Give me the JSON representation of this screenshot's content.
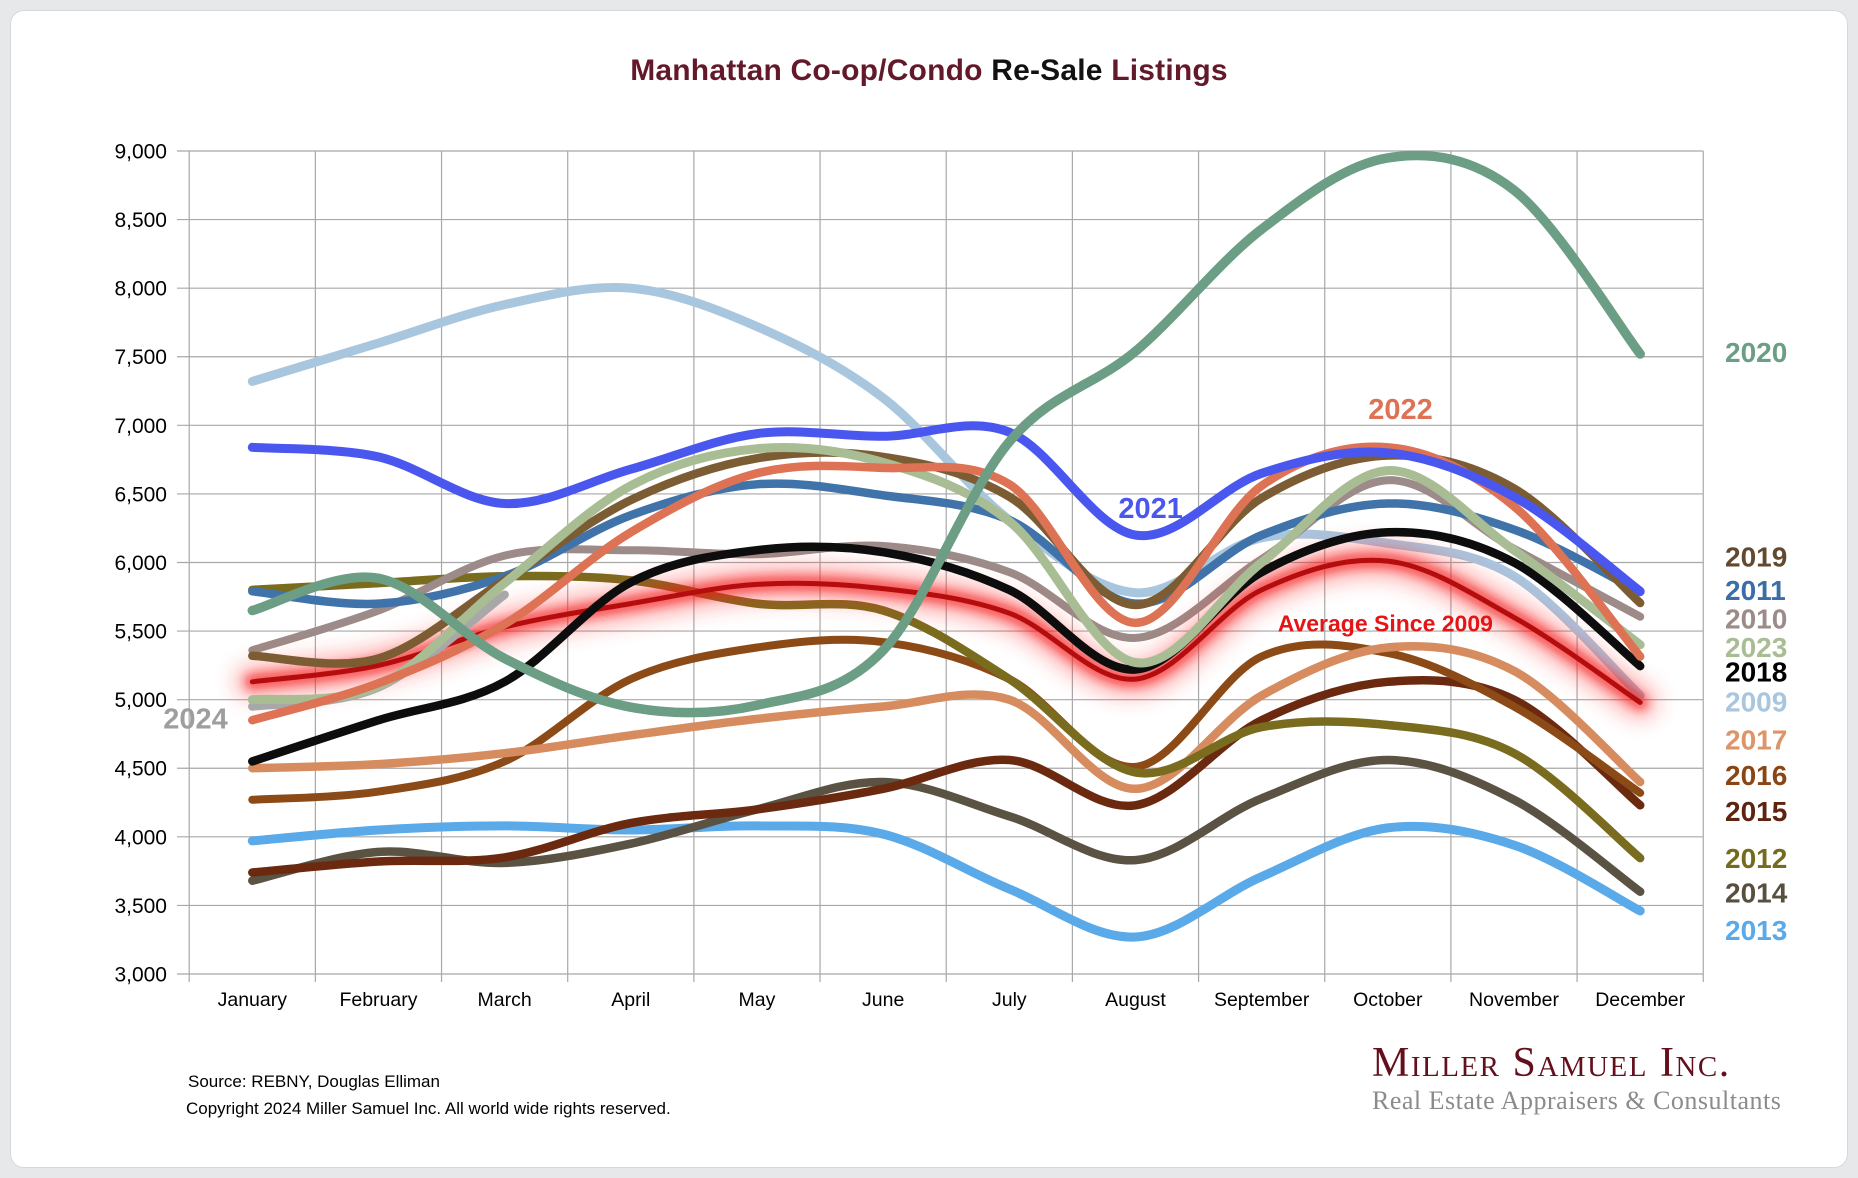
{
  "title": {
    "part1": "Manhattan Co-op/Condo ",
    "part2": "Re-Sale ",
    "part3": "Listings",
    "maroon": "#63192a",
    "black": "#121212"
  },
  "source": {
    "line1": "Source: REBNY, Douglas Elliman",
    "line2": "Copyright 2024 Miller Samuel Inc.  All world wide rights reserved."
  },
  "logo": {
    "name": "Miller Samuel Inc.",
    "tagline": "Real Estate Appraisers & Consultants",
    "name_color": "#64101c",
    "tagline_color": "#8b8b8b"
  },
  "chart_data": {
    "type": "line",
    "title": "Manhattan Co-op/Condo Re-Sale Listings",
    "xlabel": "",
    "ylabel": "",
    "grid": true,
    "ylim": [
      3000,
      9000
    ],
    "ytick_step": 500,
    "yticks": [
      {
        "v": 9000,
        "label": "9,000"
      },
      {
        "v": 8500,
        "label": "8,500"
      },
      {
        "v": 8000,
        "label": "8,000"
      },
      {
        "v": 7500,
        "label": "7,500"
      },
      {
        "v": 7000,
        "label": "7,000"
      },
      {
        "v": 6500,
        "label": "6,500"
      },
      {
        "v": 6000,
        "label": "6,000"
      },
      {
        "v": 5500,
        "label": "5,500"
      },
      {
        "v": 5000,
        "label": "5,000"
      },
      {
        "v": 4500,
        "label": "4,500"
      },
      {
        "v": 4000,
        "label": "4,000"
      },
      {
        "v": 3500,
        "label": "3,500"
      },
      {
        "v": 3000,
        "label": "3,000"
      }
    ],
    "categories": [
      "January",
      "February",
      "March",
      "April",
      "May",
      "June",
      "July",
      "August",
      "September",
      "October",
      "November",
      "December"
    ],
    "series": [
      {
        "name": "2009",
        "color": "#a9c6df",
        "width": 9,
        "values": [
          7320,
          7600,
          7880,
          8000,
          7720,
          7200,
          6310,
          5780,
          6180,
          6140,
          5900,
          5030
        ]
      },
      {
        "name": "2013",
        "color": "#5aa9e8",
        "width": 9,
        "values": [
          3970,
          4050,
          4080,
          4050,
          4080,
          4020,
          3620,
          3270,
          3710,
          4065,
          3940,
          3460
        ]
      },
      {
        "name": "2014",
        "color": "#5a5243",
        "width": 8.5,
        "values": [
          3680,
          3890,
          3810,
          3950,
          4200,
          4400,
          4150,
          3830,
          4280,
          4560,
          4270,
          3600
        ]
      },
      {
        "name": "2015",
        "color": "#6b2a10",
        "width": 8.5,
        "values": [
          3740,
          3820,
          3850,
          4100,
          4200,
          4350,
          4560,
          4230,
          4850,
          5130,
          5000,
          4230
        ]
      },
      {
        "name": "2016",
        "color": "#8c4a16",
        "width": 8,
        "values": [
          4270,
          4330,
          4550,
          5150,
          5380,
          5420,
          5150,
          4510,
          5315,
          5340,
          4950,
          4320
        ]
      },
      {
        "name": "2017",
        "color": "#d68c5f",
        "width": 8.5,
        "values": [
          4500,
          4530,
          4610,
          4740,
          4860,
          4950,
          5000,
          4350,
          5030,
          5380,
          5210,
          4400
        ]
      },
      {
        "name": "2012",
        "color": "#7a6c1e",
        "width": 8.5,
        "values": [
          5800,
          5850,
          5900,
          5870,
          5700,
          5650,
          5150,
          4470,
          4800,
          4815,
          4610,
          3845
        ]
      },
      {
        "name": "2010",
        "color": "#9c8b88",
        "width": 8,
        "values": [
          5360,
          5650,
          6050,
          6090,
          6060,
          6120,
          5930,
          5450,
          6025,
          6600,
          6100,
          5605
        ]
      },
      {
        "name": "2011",
        "color": "#3f73a9",
        "width": 8.5,
        "values": [
          5790,
          5700,
          5900,
          6345,
          6570,
          6490,
          6310,
          5700,
          6200,
          6430,
          6240,
          5785
        ]
      },
      {
        "name": "Average Since 2009",
        "glow": true,
        "color": "#b50d0d",
        "width": 5,
        "values": [
          5130,
          5250,
          5530,
          5700,
          5840,
          5810,
          5630,
          5150,
          5800,
          6010,
          5600,
          4980
        ]
      },
      {
        "name": "2024",
        "color": "#a8a8a8",
        "width": 8.5,
        "values": [
          4950,
          5090,
          5765,
          null,
          null,
          null,
          null,
          null,
          null,
          null,
          null,
          null
        ]
      },
      {
        "name": "2018",
        "color": "#0d0d0d",
        "width": 8.5,
        "values": [
          4550,
          4850,
          5130,
          5855,
          6090,
          6075,
          5800,
          5220,
          5930,
          6220,
          6000,
          5245
        ]
      },
      {
        "name": "2019",
        "color": "#7c5c33",
        "width": 8.5,
        "values": [
          5320,
          5300,
          5870,
          6455,
          6760,
          6770,
          6480,
          5690,
          6470,
          6780,
          6540,
          5705
        ]
      },
      {
        "name": "2023",
        "color": "#a9bd94",
        "width": 9,
        "values": [
          5000,
          5100,
          5850,
          6560,
          6830,
          6730,
          6300,
          5270,
          6000,
          6670,
          6090,
          5400
        ]
      },
      {
        "name": "2022",
        "color": "#dd7254",
        "width": 8.5,
        "values": [
          4850,
          5120,
          5550,
          6220,
          6650,
          6690,
          6570,
          5560,
          6560,
          6840,
          6410,
          5315
        ]
      },
      {
        "name": "2021",
        "color": "#4a57ee",
        "width": 9,
        "values": [
          6840,
          6770,
          6430,
          6680,
          6940,
          6920,
          6950,
          6200,
          6650,
          6800,
          6480,
          5790
        ]
      },
      {
        "name": "2020",
        "color": "#6b9e84",
        "width": 9.5,
        "values": [
          5650,
          5885,
          5300,
          4945,
          4960,
          5360,
          6880,
          7540,
          8430,
          8950,
          8715,
          7520
        ]
      }
    ],
    "right_labels": [
      {
        "text": "2020",
        "color": "#6b9e84",
        "value": 7535
      },
      {
        "text": "2019",
        "color": "#63492f",
        "value": 6045
      },
      {
        "text": "2011",
        "color": "#3a6ea5",
        "value": 5800
      },
      {
        "text": "2010",
        "color": "#9c8b88",
        "value": 5590
      },
      {
        "text": "2023",
        "color": "#a9bd94",
        "value": 5385
      },
      {
        "text": "2018",
        "color": "#000000",
        "value": 5205
      },
      {
        "text": "2009",
        "color": "#a9c6df",
        "value": 4985
      },
      {
        "text": "2017",
        "color": "#dd9468",
        "value": 4710
      },
      {
        "text": "2016",
        "color": "#8b4513",
        "value": 4450
      },
      {
        "text": "2015",
        "color": "#5e2411",
        "value": 4190
      },
      {
        "text": "2012",
        "color": "#756b1e",
        "value": 3845
      },
      {
        "text": "2014",
        "color": "#57503f",
        "value": 3595
      },
      {
        "text": "2013",
        "color": "#5aa9e8",
        "value": 3320
      }
    ],
    "annotations": [
      {
        "text": "2024",
        "color": "#9e9e9e",
        "x": -0.45,
        "value": 4865,
        "size": 29
      },
      {
        "text": "2021",
        "color": "#4a57ee",
        "x": 7.12,
        "value": 6400,
        "size": 29
      },
      {
        "text": "2022",
        "color": "#dd7254",
        "x": 9.1,
        "value": 7120,
        "size": 29
      },
      {
        "text": "Average  Since 2009",
        "color": "#e51515",
        "x": 8.98,
        "value": 5555,
        "size": 23
      }
    ],
    "legend_position": "right",
    "grid_color": "#a8a8a8"
  }
}
